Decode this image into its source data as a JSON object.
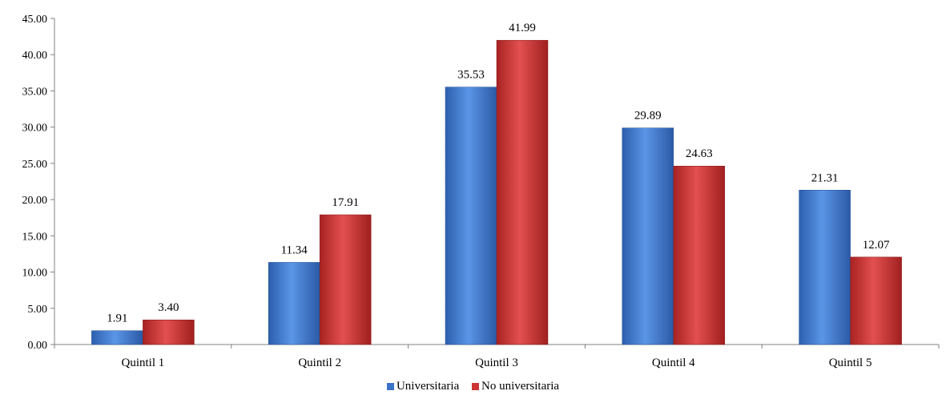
{
  "chart_data": {
    "type": "bar",
    "categories": [
      "Quintil 1",
      "Quintil 2",
      "Quintil 3",
      "Quintil 4",
      "Quintil 5"
    ],
    "series": [
      {
        "name": "Universitaria",
        "values": [
          1.91,
          11.34,
          35.53,
          29.89,
          21.31
        ],
        "labels": [
          "1.91",
          "11.34",
          "35.53",
          "29.89",
          "21.31"
        ],
        "color": "#3b73c9"
      },
      {
        "name": "No universitaria",
        "values": [
          3.4,
          17.91,
          41.99,
          24.63,
          12.07
        ],
        "labels": [
          "3.40",
          "17.91",
          "41.99",
          "24.63",
          "12.07"
        ],
        "color": "#cc3333"
      }
    ],
    "yticks": [
      "0.00",
      "5.00",
      "10.00",
      "15.00",
      "20.00",
      "25.00",
      "30.00",
      "35.00",
      "40.00",
      "45.00"
    ],
    "ylim": [
      0,
      45
    ],
    "grid": false,
    "legend_position": "bottom"
  }
}
